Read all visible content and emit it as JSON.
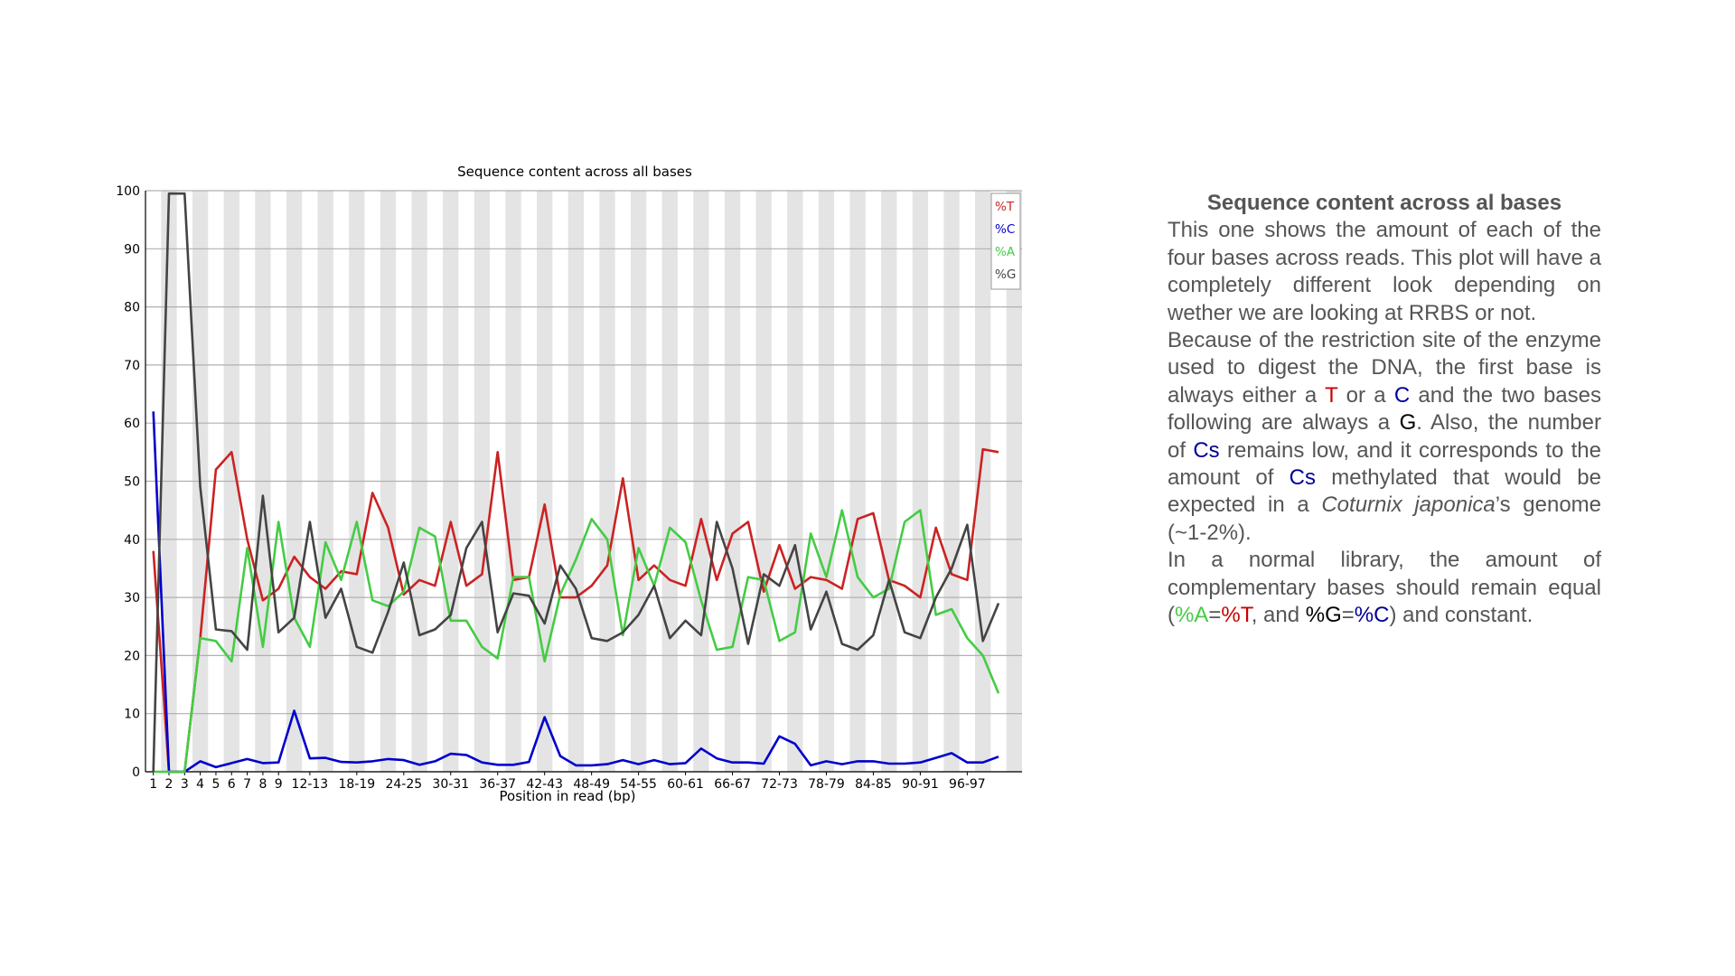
{
  "chart_data": {
    "type": "line",
    "title": "Sequence content across all bases",
    "xlabel": "Position in read (bp)",
    "ylabel": "",
    "ylim": [
      0,
      100
    ],
    "yticks": [
      0,
      10,
      20,
      30,
      40,
      50,
      60,
      70,
      80,
      90,
      100
    ],
    "grid": true,
    "legend_position": "top-right",
    "x_tick_labels": [
      "1",
      "2",
      "3",
      "4",
      "5",
      "6",
      "7",
      "8",
      "9",
      "12-13",
      "18-19",
      "24-25",
      "30-31",
      "36-37",
      "42-43",
      "48-49",
      "54-55",
      "60-61",
      "66-67",
      "72-73",
      "78-79",
      "84-85",
      "90-91",
      "96-97"
    ],
    "x": [
      "1",
      "2",
      "3",
      "4",
      "5",
      "6",
      "7",
      "8",
      "9",
      "10-11",
      "12-13",
      "14-15",
      "16-17",
      "18-19",
      "20-21",
      "22-23",
      "24-25",
      "26-27",
      "28-29",
      "30-31",
      "32-33",
      "34-35",
      "36-37",
      "38-39",
      "40-41",
      "42-43",
      "44-45",
      "46-47",
      "48-49",
      "50-51",
      "52-53",
      "54-55",
      "56-57",
      "58-59",
      "60-61",
      "62-63",
      "64-65",
      "66-67",
      "68-69",
      "70-71",
      "72-73",
      "74-75",
      "76-77",
      "78-79",
      "80-81",
      "82-83",
      "84-85",
      "86-87",
      "88-89",
      "90-91",
      "92-93",
      "94-95",
      "96-97",
      "98-99",
      "100-101",
      "102-103"
    ],
    "series": [
      {
        "name": "%T",
        "color": "#cc2222",
        "values": [
          38,
          0,
          0,
          23,
          52,
          55,
          40,
          29.5,
          31.5,
          37,
          33.5,
          31.5,
          34.5,
          34,
          48,
          42,
          30.5,
          33,
          32,
          43,
          32,
          34,
          55,
          33,
          33.5,
          46,
          30,
          30,
          32,
          35.5,
          50.5,
          33,
          35.5,
          33,
          32,
          43.5,
          33,
          41,
          43,
          31,
          39,
          31.5,
          33.5,
          33,
          31.5,
          43.5,
          44.5,
          33,
          32,
          30,
          42,
          34,
          33,
          55.5,
          55,
          null
        ]
      },
      {
        "name": "%C",
        "color": "#0000cc",
        "values": [
          62,
          0,
          0,
          1.8,
          0.8,
          1.5,
          2.2,
          1.5,
          1.6,
          10.5,
          2.3,
          2.4,
          1.7,
          1.6,
          1.8,
          2.2,
          2,
          1.2,
          1.8,
          3.1,
          2.9,
          1.6,
          1.2,
          1.2,
          1.7,
          9.4,
          2.7,
          1.1,
          1.1,
          1.3,
          2,
          1.3,
          2,
          1.3,
          1.5,
          4,
          2.3,
          1.6,
          1.6,
          1.4,
          6.1,
          4.8,
          1.1,
          1.8,
          1.3,
          1.8,
          1.8,
          1.4,
          1.4,
          1.6,
          2.4,
          3.2,
          1.6,
          1.6,
          2.6,
          null
        ]
      },
      {
        "name": "%A",
        "color": "#44cc44",
        "values": [
          0,
          0,
          0,
          23,
          22.5,
          19,
          38.5,
          21.5,
          43,
          26.5,
          21.5,
          39.5,
          33,
          43,
          29.5,
          28.5,
          31,
          42,
          40.5,
          26,
          26,
          21.5,
          19.5,
          33.5,
          33.5,
          19,
          30.5,
          36.5,
          43.5,
          40,
          23.5,
          38.5,
          32,
          42,
          39.5,
          29.5,
          21,
          21.5,
          33.5,
          33,
          22.5,
          24,
          41,
          33.5,
          45,
          33.5,
          30,
          31.5,
          43,
          45,
          27,
          28,
          23,
          20,
          13.5,
          null
        ]
      },
      {
        "name": "%G",
        "color": "#444444",
        "values": [
          0,
          99.5,
          99.5,
          49,
          24.5,
          24.2,
          21,
          47.5,
          24,
          26.5,
          43,
          26.5,
          31.5,
          21.5,
          20.5,
          27.5,
          36,
          23.5,
          24.5,
          27,
          38.5,
          43,
          24,
          30.7,
          30.3,
          25.5,
          35.5,
          31.5,
          23,
          22.5,
          24,
          27,
          32,
          23,
          26,
          23.5,
          43,
          35,
          22,
          34,
          32,
          39,
          24.5,
          31,
          22,
          21,
          23.5,
          33,
          24,
          23,
          30,
          35,
          42.5,
          22.5,
          29,
          null
        ]
      }
    ]
  },
  "description": {
    "title": "Sequence content across al bases",
    "p1": "This one shows the amount of each of the four bases across reads. This plot will have a completely different look depending on wether we are looking at RRBS or not.",
    "p2": {
      "s1": "Because of the restriction site of the enzyme used to digest the DNA, the first base is always either a ",
      "t": "T",
      "s2": " or a ",
      "c": "C",
      "s3": " and the two bases following are always a ",
      "g": "G",
      "s4": ". Also, the number of ",
      "cs1": "Cs",
      "s5": " remains low, and it corresponds to the amount of ",
      "cs2": "Cs",
      "s6": " methylated that would be expected in a ",
      "species": "Coturnix japonica",
      "s7": "’s genome (~1-2%)."
    },
    "p3": {
      "s1": "In a normal library, the amount of complementary bases should remain equal (",
      "a": "%A",
      "eq1": "=",
      "t": "%T",
      "s2": ", and ",
      "g": "%G",
      "eq2": "=",
      "c": "%C",
      "s3": ") and constant."
    }
  }
}
